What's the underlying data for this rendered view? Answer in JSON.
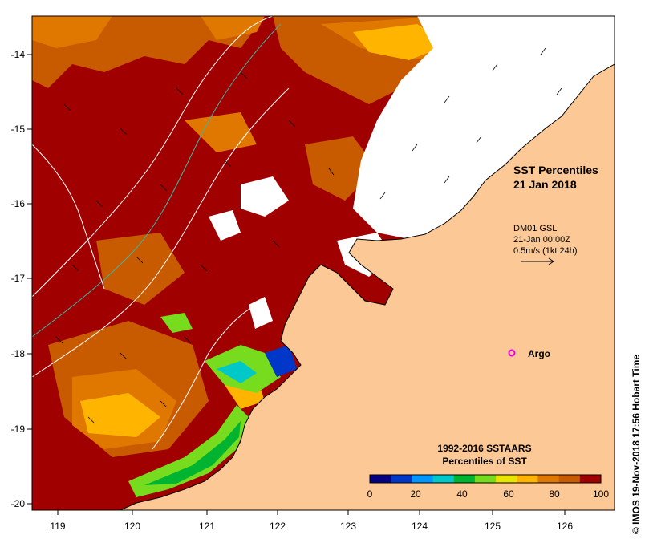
{
  "map": {
    "title_line1": "SST Percentiles",
    "title_line2": "21 Jan 2018",
    "current_source": "DM01 GSL",
    "current_time": "21-Jan 00:00Z",
    "current_scale": "0.5m/s (1kt 24h)",
    "argo_label": "Argo",
    "credit": "© IMOS 19-Nov-2018 17:56 Hobart Time",
    "legend_title_line1": "1992-2016 SSTAARS",
    "legend_title_line2": "Percentiles of SST",
    "legend_ticks": [
      "0",
      "20",
      "40",
      "60",
      "80",
      "100"
    ],
    "legend_colors": [
      "#000080",
      "#0037c8",
      "#0096ff",
      "#00c8c8",
      "#00b432",
      "#78dc1e",
      "#e6e600",
      "#ffb400",
      "#e07800",
      "#c85a00",
      "#a00000"
    ],
    "x_ticks": [
      "119",
      "120",
      "121",
      "122",
      "123",
      "124",
      "125",
      "126"
    ],
    "y_ticks": [
      "-14",
      "-15",
      "-16",
      "-17",
      "-18",
      "-19",
      "-20"
    ],
    "colors": {
      "land": "#fcc896",
      "hot": "#a00000",
      "warm": "#c85a00",
      "ocean_edge": "#ffffff"
    }
  }
}
